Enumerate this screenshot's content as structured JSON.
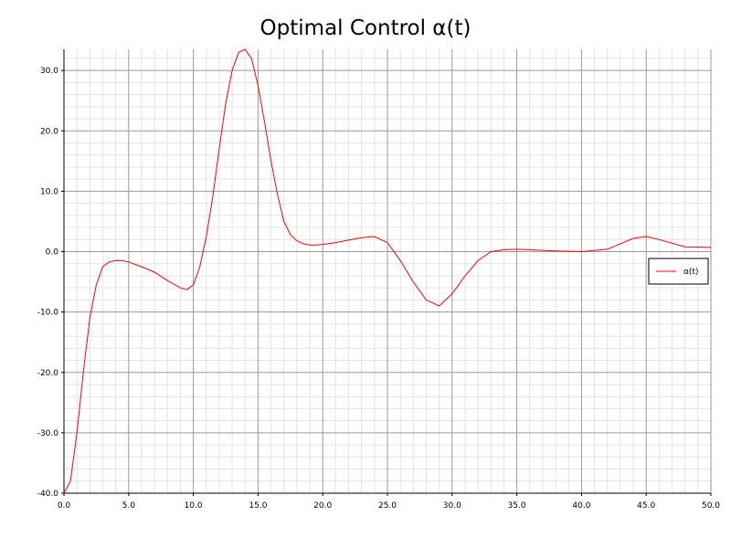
{
  "chart_data": {
    "type": "line",
    "title": "Optimal Control α(t)",
    "xlabel": "",
    "ylabel": "",
    "xlim": [
      0,
      50
    ],
    "ylim": [
      -40,
      33.5
    ],
    "grid": true,
    "legend_position": "right",
    "x_ticks": [
      "0.0",
      "5.0",
      "10.0",
      "15.0",
      "20.0",
      "25.0",
      "30.0",
      "35.0",
      "40.0",
      "45.0",
      "50.0"
    ],
    "y_ticks": [
      "-40.0",
      "-30.0",
      "-20.0",
      "-10.0",
      "0.0",
      "10.0",
      "20.0",
      "30.0"
    ],
    "series": [
      {
        "name": "α(t)",
        "color": "#ff0000",
        "x": [
          0,
          0.5,
          1,
          1.5,
          2,
          2.5,
          3,
          3.5,
          4,
          4.5,
          5,
          6,
          7,
          8,
          9,
          9.5,
          10,
          10.5,
          11,
          11.5,
          12,
          12.5,
          13,
          13.5,
          14,
          14.5,
          15,
          15.5,
          16,
          16.5,
          17,
          17.5,
          18,
          18.5,
          19,
          19.5,
          20,
          21,
          22,
          23,
          24,
          25,
          26,
          27,
          28,
          29,
          30,
          31,
          32,
          33,
          34,
          35,
          36,
          38,
          40,
          42,
          44,
          45,
          46,
          48,
          50
        ],
        "values": [
          -40.0,
          -38.0,
          -30.0,
          -20.0,
          -11.0,
          -5.5,
          -2.5,
          -1.7,
          -1.5,
          -1.5,
          -1.7,
          -2.5,
          -3.4,
          -4.8,
          -6.0,
          -6.3,
          -5.5,
          -2.5,
          2.5,
          9.0,
          17.0,
          24.5,
          30.0,
          33.0,
          33.5,
          32.0,
          27.5,
          21.5,
          15.0,
          9.5,
          5.0,
          2.8,
          1.8,
          1.3,
          1.1,
          1.1,
          1.2,
          1.5,
          1.9,
          2.3,
          2.5,
          1.5,
          -1.5,
          -5.0,
          -8.0,
          -9.0,
          -7.0,
          -4.0,
          -1.5,
          0.0,
          0.3,
          0.4,
          0.3,
          0.1,
          0.0,
          0.4,
          2.2,
          2.5,
          2.0,
          0.8,
          0.7
        ]
      }
    ]
  }
}
